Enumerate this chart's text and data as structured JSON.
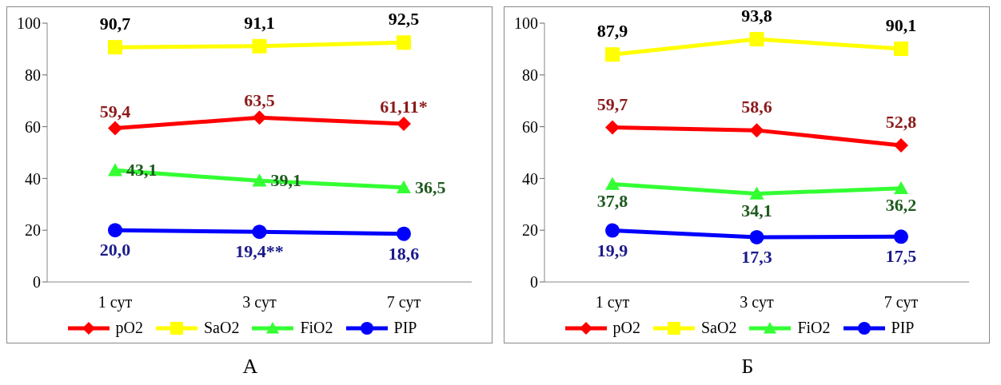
{
  "chart_data": [
    {
      "type": "line",
      "title": "А",
      "categories": [
        "1 сут",
        "3 сут",
        "7 сут"
      ],
      "ylim": [
        0,
        100
      ],
      "yticks": [
        0,
        20,
        40,
        60,
        80,
        100
      ],
      "grid": false,
      "legend": "bottom",
      "series": [
        {
          "name": "pO2",
          "color": "#ff0000",
          "marker": "diamond",
          "values": [
            59.4,
            63.5,
            61.11
          ],
          "value_labels": [
            "59,4",
            "63,5",
            "61,11*"
          ]
        },
        {
          "name": "SaO2",
          "color": "#ffff00",
          "marker": "square",
          "values": [
            90.7,
            91.1,
            92.5
          ],
          "value_labels": [
            "90,7",
            "91,1",
            "92,5"
          ]
        },
        {
          "name": "FiO2",
          "color": "#33ff33",
          "marker": "triangle",
          "values": [
            43.1,
            39.1,
            36.5
          ],
          "value_labels": [
            "43,1",
            "39,1",
            "36,5"
          ]
        },
        {
          "name": "PIP",
          "color": "#0000ff",
          "marker": "circle",
          "values": [
            20.0,
            19.4,
            18.6
          ],
          "value_labels": [
            "20,0",
            "19,4**",
            "18,6"
          ]
        }
      ]
    },
    {
      "type": "line",
      "title": "Б",
      "categories": [
        "1 сут",
        "3 сут",
        "7 сут"
      ],
      "ylim": [
        0,
        100
      ],
      "yticks": [
        0,
        20,
        40,
        60,
        80,
        100
      ],
      "grid": false,
      "legend": "bottom",
      "series": [
        {
          "name": "pO2",
          "color": "#ff0000",
          "marker": "diamond",
          "values": [
            59.7,
            58.6,
            52.8
          ],
          "value_labels": [
            "59,7",
            "58,6",
            "52,8"
          ]
        },
        {
          "name": "SaO2",
          "color": "#ffff00",
          "marker": "square",
          "values": [
            87.9,
            93.8,
            90.1
          ],
          "value_labels": [
            "87,9",
            "93,8",
            "90,1"
          ]
        },
        {
          "name": "FiO2",
          "color": "#33ff33",
          "marker": "triangle",
          "values": [
            37.8,
            34.1,
            36.2
          ],
          "value_labels": [
            "37,8",
            "34,1",
            "36,2"
          ]
        },
        {
          "name": "PIP",
          "color": "#0000ff",
          "marker": "circle",
          "values": [
            19.9,
            17.3,
            17.5
          ],
          "value_labels": [
            "19,9",
            "17,3",
            "17,5"
          ]
        }
      ]
    }
  ]
}
